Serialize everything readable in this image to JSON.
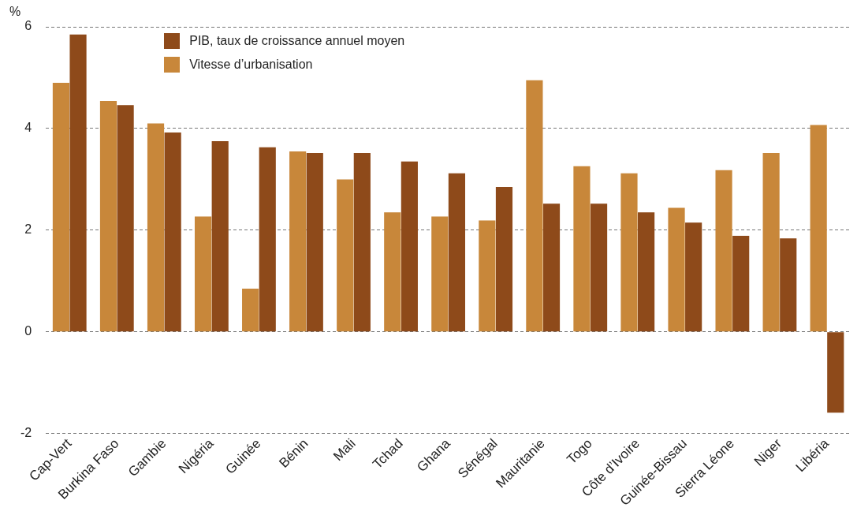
{
  "chart_data": {
    "type": "bar",
    "ylabel": "%",
    "categories": [
      "Cap-Vert",
      "Burkina Faso",
      "Gambie",
      "Nigéria",
      "Guinée",
      "Bénin",
      "Mali",
      "Tchad",
      "Ghana",
      "Sénégal",
      "Mauritanie",
      "Togo",
      "Côte d’Ivoire",
      "Guinée-Bissau",
      "Sierra Léone",
      "Niger",
      "Libéria"
    ],
    "series": [
      {
        "name": "Vitesse d’urbanisation",
        "color": "#c8873a",
        "values": [
          4.9,
          4.54,
          4.1,
          2.27,
          0.85,
          3.55,
          3.0,
          2.35,
          2.27,
          2.19,
          4.95,
          3.26,
          3.12,
          2.44,
          3.18,
          3.52,
          4.07
        ]
      },
      {
        "name": "PIB, taux de croissance annuel moyen",
        "color": "#8e4a1a",
        "values": [
          5.85,
          4.46,
          3.92,
          3.75,
          3.63,
          3.52,
          3.52,
          3.35,
          3.12,
          2.85,
          2.52,
          2.52,
          2.35,
          2.15,
          1.89,
          1.84,
          -1.59
        ]
      }
    ],
    "ylim": [
      -2,
      6
    ],
    "yticks": [
      -2,
      0,
      2,
      4,
      6
    ],
    "grid": "y",
    "legend": "top left"
  }
}
